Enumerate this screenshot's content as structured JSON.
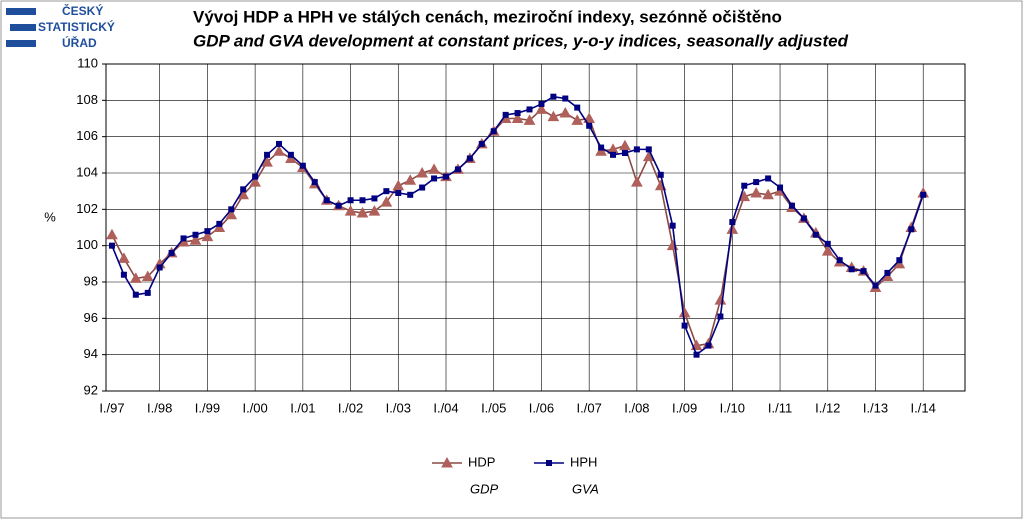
{
  "logo": [
    "ČESKÝ",
    "STATISTICKÝ",
    "ÚŘAD"
  ],
  "chart_data": {
    "type": "line",
    "title": "Vývoj HDP a HPH ve stálých cenách, meziroční indexy, sezónně očištěno",
    "subtitle": "GDP and GVA development at constant prices, y-o-y indices, seasonally adjusted",
    "y_label": "%",
    "categories": [
      "I./97",
      null,
      null,
      null,
      "I./98",
      null,
      null,
      null,
      "I./99",
      null,
      null,
      null,
      "I./00",
      null,
      null,
      null,
      "I./01",
      null,
      null,
      null,
      "I./02",
      null,
      null,
      null,
      "I./03",
      null,
      null,
      null,
      "I./04",
      null,
      null,
      null,
      "I./05",
      null,
      null,
      null,
      "I./06",
      null,
      null,
      null,
      "I./07",
      null,
      null,
      null,
      "I./08",
      null,
      null,
      null,
      "I./09",
      null,
      null,
      null,
      "I./10",
      null,
      null,
      null,
      "I./11",
      null,
      null,
      null,
      "I./12",
      null,
      null,
      null,
      "I./13",
      null,
      null,
      null,
      "I./14"
    ],
    "series": [
      {
        "name": "HDP",
        "name_en": "GDP",
        "color": "#b0605a",
        "line_color": "#8a4a44",
        "marker": "triangle",
        "values": [
          100.6,
          99.3,
          98.2,
          98.3,
          99.0,
          99.6,
          100.2,
          100.3,
          100.5,
          101.0,
          101.7,
          102.8,
          103.5,
          104.6,
          105.2,
          104.8,
          104.3,
          103.4,
          102.5,
          102.2,
          101.9,
          101.8,
          101.9,
          102.4,
          103.3,
          103.6,
          104.0,
          104.2,
          103.8,
          104.2,
          104.8,
          105.6,
          106.3,
          107.0,
          107.0,
          106.9,
          107.5,
          107.1,
          107.3,
          106.9,
          107.0,
          105.2,
          105.3,
          105.5,
          103.5,
          104.9,
          103.3,
          100.0,
          96.3,
          94.5,
          94.6,
          97.0,
          100.9,
          102.7,
          102.9,
          102.8,
          103.0,
          102.1,
          101.5,
          100.7,
          99.7,
          99.1,
          98.8,
          98.6,
          97.7,
          98.3,
          99.0,
          101.0,
          102.9
        ]
      },
      {
        "name": "HPH",
        "name_en": "GVA",
        "color": "#000080",
        "line_color": "#000080",
        "marker": "square",
        "values": [
          100.0,
          98.4,
          97.3,
          97.4,
          98.8,
          99.6,
          100.4,
          100.6,
          100.8,
          101.2,
          102.0,
          103.1,
          103.8,
          105.0,
          105.6,
          105.0,
          104.4,
          103.5,
          102.5,
          102.2,
          102.5,
          102.5,
          102.6,
          103.0,
          102.9,
          102.8,
          103.2,
          103.7,
          103.8,
          104.2,
          104.8,
          105.6,
          106.3,
          107.2,
          107.3,
          107.5,
          107.8,
          108.2,
          108.1,
          107.6,
          106.6,
          105.4,
          105.0,
          105.1,
          105.3,
          105.3,
          103.9,
          101.1,
          95.6,
          94.0,
          94.5,
          96.1,
          101.3,
          103.3,
          103.5,
          103.7,
          103.2,
          102.2,
          101.5,
          100.6,
          100.1,
          99.2,
          98.7,
          98.6,
          97.8,
          98.5,
          99.2,
          100.9,
          102.8
        ]
      }
    ],
    "ylim": [
      92,
      110
    ],
    "yticks": [
      92,
      94,
      96,
      98,
      100,
      102,
      104,
      106,
      108,
      110
    ],
    "grid": true
  }
}
